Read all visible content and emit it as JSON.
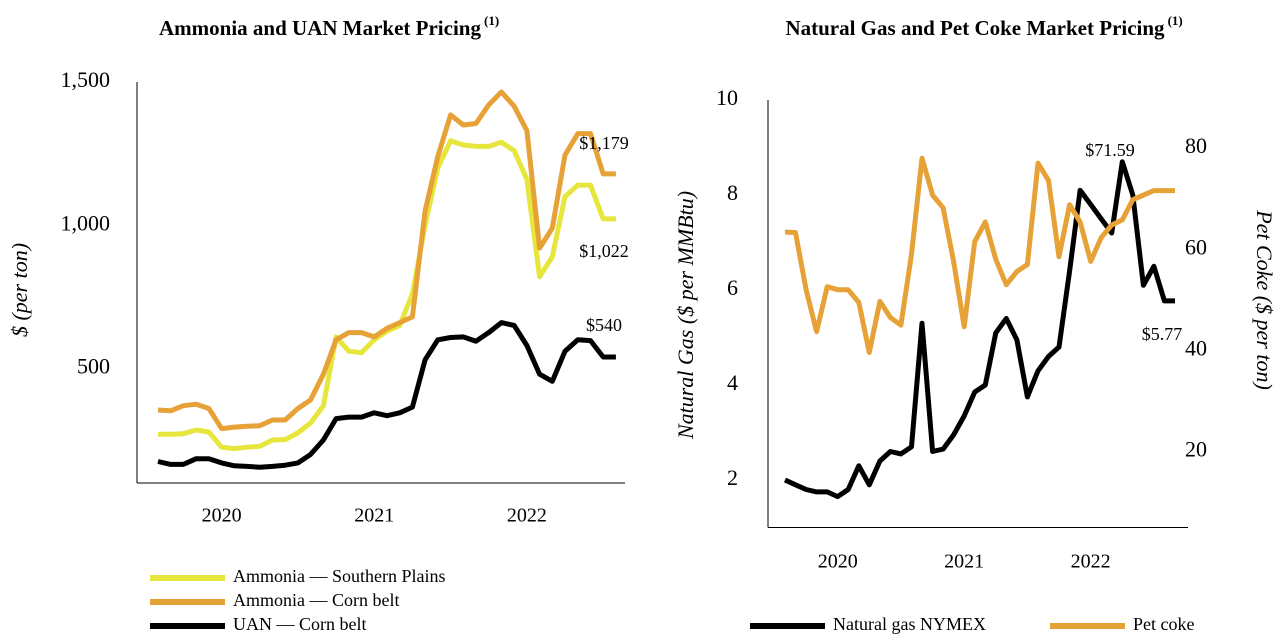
{
  "chart_data": [
    {
      "type": "line",
      "title": "Ammonia and UAN Market Pricing",
      "title_note": "(1)",
      "ylabel": "$ (per ton)",
      "categories": [
        null,
        null,
        null,
        null,
        null,
        "2020",
        null,
        null,
        null,
        null,
        null,
        null,
        null,
        null,
        null,
        null,
        null,
        "2021",
        null,
        null,
        null,
        null,
        null,
        null,
        null,
        null,
        null,
        null,
        null,
        "2022",
        null,
        null,
        null,
        null,
        null,
        null,
        null
      ],
      "ylim": [
        100,
        1500
      ],
      "yticks": [
        500,
        {
          "value": 1000,
          "label": "1,000"
        },
        {
          "value": 1500,
          "label": "1,500"
        }
      ],
      "grid": false,
      "legend": "bottom-left",
      "series": [
        {
          "name": "Ammonia — Southern Plains",
          "color": "#e6e63c",
          "values": [
            270,
            270,
            272,
            285,
            278,
            225,
            220,
            225,
            228,
            250,
            252,
            275,
            310,
            370,
            610,
            560,
            555,
            600,
            630,
            650,
            760,
            1000,
            1200,
            1295,
            1280,
            1275,
            1275,
            1290,
            1260,
            1160,
            820,
            890,
            1100,
            1140,
            1140,
            1022,
            1022
          ],
          "value_labels": [
            null,
            null,
            null,
            null,
            null,
            null,
            null,
            null,
            null,
            null,
            null,
            null,
            null,
            null,
            null,
            null,
            null,
            null,
            null,
            null,
            null,
            null,
            null,
            null,
            null,
            null,
            null,
            null,
            null,
            null,
            null,
            null,
            null,
            null,
            null,
            null,
            "$1,022"
          ]
        },
        {
          "name": "Ammonia — Corn belt",
          "color": "#e6a236",
          "values": [
            355,
            352,
            370,
            375,
            360,
            290,
            295,
            298,
            300,
            320,
            320,
            360,
            390,
            480,
            600,
            625,
            625,
            610,
            640,
            660,
            680,
            1050,
            1240,
            1385,
            1350,
            1355,
            1420,
            1465,
            1415,
            1330,
            920,
            990,
            1245,
            1320,
            1320,
            1179,
            1179
          ],
          "value_labels": [
            null,
            null,
            null,
            null,
            null,
            null,
            null,
            null,
            null,
            null,
            null,
            null,
            null,
            null,
            null,
            null,
            null,
            null,
            null,
            null,
            null,
            null,
            null,
            null,
            null,
            null,
            null,
            null,
            null,
            null,
            null,
            null,
            null,
            null,
            null,
            null,
            "$1,179"
          ]
        },
        {
          "name": "UAN — Corn belt",
          "color": "#000000",
          "values": [
            175,
            165,
            165,
            185,
            185,
            170,
            160,
            158,
            155,
            158,
            162,
            170,
            200,
            250,
            325,
            330,
            330,
            345,
            335,
            345,
            365,
            530,
            600,
            608,
            610,
            595,
            625,
            660,
            650,
            580,
            480,
            455,
            560,
            600,
            597,
            540,
            540
          ],
          "value_labels": [
            null,
            null,
            null,
            null,
            null,
            null,
            null,
            null,
            null,
            null,
            null,
            null,
            null,
            null,
            null,
            null,
            null,
            null,
            null,
            null,
            null,
            null,
            null,
            null,
            null,
            null,
            null,
            null,
            null,
            null,
            null,
            null,
            null,
            null,
            null,
            null,
            "$540"
          ]
        }
      ]
    },
    {
      "type": "line",
      "title": "Natural Gas and Pet Coke Market Pricing",
      "title_note": "(1)",
      "ylabel": "Natural Gas ($ per MMBtu)",
      "y2label": "Pet Coke ($ per ton)",
      "categories": [
        null,
        null,
        null,
        null,
        null,
        "2020",
        null,
        null,
        null,
        null,
        null,
        null,
        null,
        null,
        null,
        null,
        null,
        "2021",
        null,
        null,
        null,
        null,
        null,
        null,
        null,
        null,
        null,
        null,
        null,
        "2022",
        null,
        null,
        null,
        null,
        null,
        null,
        null,
        null
      ],
      "ylim": [
        1,
        10
      ],
      "yticks": [
        2,
        4,
        6,
        8,
        10
      ],
      "y2lim": [
        5,
        89.5
      ],
      "y2ticks": [
        20,
        40,
        60,
        80
      ],
      "grid": false,
      "legend": "bottom",
      "series": [
        {
          "name": "Natural gas NYMEX",
          "color": "#000000",
          "values": [
            2.0,
            1.9,
            1.8,
            1.75,
            1.75,
            1.65,
            1.8,
            2.3,
            1.9,
            2.4,
            2.6,
            2.55,
            2.7,
            5.3,
            2.6,
            2.65,
            2.95,
            3.35,
            3.85,
            4.0,
            5.1,
            5.4,
            4.95,
            3.75,
            4.3,
            4.6,
            4.8,
            6.4,
            8.1,
            7.8,
            7.5,
            7.2,
            8.7,
            8.0,
            6.1,
            6.5,
            5.77,
            5.77
          ],
          "value_labels": [
            null,
            null,
            null,
            null,
            null,
            null,
            null,
            null,
            null,
            null,
            null,
            null,
            null,
            null,
            null,
            null,
            null,
            null,
            null,
            null,
            null,
            null,
            null,
            null,
            null,
            null,
            null,
            null,
            null,
            null,
            null,
            null,
            null,
            null,
            null,
            null,
            null,
            "$5.77"
          ]
        },
        {
          "name": "Pet coke",
          "color": "#e6a236",
          "axis": "y2",
          "values": [
            63.4,
            63.3,
            52,
            43.7,
            52.6,
            52,
            52,
            49.5,
            39.6,
            49.7,
            46.5,
            45,
            59,
            78,
            70.7,
            68.2,
            57.6,
            44.7,
            61.5,
            65.4,
            58,
            53,
            55.6,
            57,
            77,
            73.6,
            58.5,
            68.8,
            65.4,
            57.6,
            62.3,
            64.8,
            65.8,
            69.8,
            70.7,
            71.59,
            71.59,
            71.59
          ],
          "value_labels": [
            null,
            null,
            null,
            null,
            null,
            null,
            null,
            null,
            null,
            null,
            null,
            null,
            null,
            null,
            null,
            null,
            null,
            null,
            null,
            null,
            null,
            null,
            null,
            null,
            null,
            null,
            null,
            null,
            null,
            null,
            null,
            null,
            null,
            null,
            null,
            null,
            null,
            "$71.59"
          ]
        }
      ]
    }
  ]
}
